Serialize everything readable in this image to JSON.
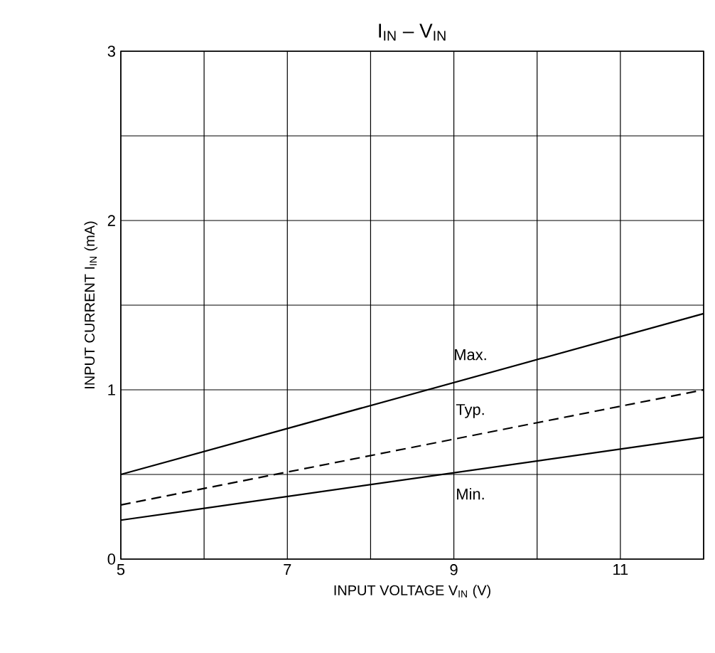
{
  "chart_data": {
    "type": "line",
    "title": "I$_{IN}$  –  V$_{IN}$",
    "xlabel": "INPUT VOLTAGE   V$_{IN}$   (V)",
    "ylabel": "INPUT CURRENT   I$_{IN}$   (mA)",
    "xlim": [
      5,
      12
    ],
    "ylim": [
      0,
      3
    ],
    "xticks": [
      5,
      {
        "value": 6,
        "label": null
      },
      7,
      {
        "value": 8,
        "label": null
      },
      9,
      {
        "value": 10,
        "label": null
      },
      11,
      {
        "value": 12,
        "label": null
      }
    ],
    "yticks": [
      0,
      {
        "value": 0.5,
        "label": null
      },
      1,
      {
        "value": 1.5,
        "label": null
      },
      2,
      {
        "value": 2.5,
        "label": null
      },
      3
    ],
    "grid": true,
    "legend": false,
    "marker": "none",
    "x": [
      5,
      12
    ],
    "series": [
      {
        "name": "Max.",
        "color": "#000000",
        "line_style": "solid",
        "values": [
          0.5,
          1.45
        ]
      },
      {
        "name": "Typ.",
        "color": "#000000",
        "line_style": "dashed",
        "values": [
          0.32,
          1.0
        ]
      },
      {
        "name": "Min.",
        "color": "#000000",
        "line_style": "solid",
        "values": [
          0.23,
          0.72
        ]
      }
    ]
  }
}
